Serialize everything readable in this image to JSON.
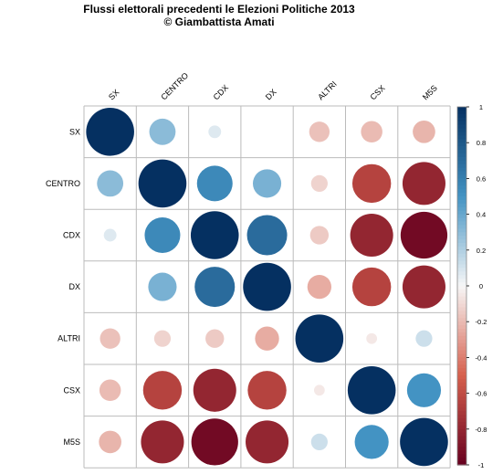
{
  "chart_data": {
    "type": "heatmap",
    "title": "Flussi elettorali precedenti le Elezioni Politiche 2013",
    "subtitle": "© Giambattista Amati",
    "labels": [
      "SX",
      "CENTRO",
      "CDX",
      "DX",
      "ALTRI",
      "CSX",
      "M5S"
    ],
    "matrix": [
      [
        1.0,
        0.3,
        0.07,
        0.0,
        -0.18,
        -0.2,
        -0.22
      ],
      [
        0.3,
        1.0,
        0.55,
        0.35,
        -0.12,
        -0.65,
        -0.8
      ],
      [
        0.07,
        0.55,
        1.0,
        0.7,
        -0.15,
        -0.8,
        -0.95
      ],
      [
        0.0,
        0.35,
        0.7,
        1.0,
        -0.25,
        -0.65,
        -0.8
      ],
      [
        -0.18,
        -0.12,
        -0.15,
        -0.25,
        1.0,
        -0.05,
        0.12
      ],
      [
        -0.2,
        -0.65,
        -0.8,
        -0.65,
        -0.05,
        1.0,
        0.5
      ],
      [
        -0.22,
        -0.8,
        -0.95,
        -0.8,
        0.12,
        0.5,
        1.0
      ]
    ],
    "colorbar_ticks": [
      "1",
      "0.8",
      "0.6",
      "0.4",
      "0.2",
      "0",
      "-0.2",
      "-0.4",
      "-0.6",
      "-0.8",
      "-1"
    ],
    "range": [
      -1,
      1
    ],
    "colors": {
      "neg_full": "#67001f",
      "neg_mid": "#d6604d",
      "neutral": "#f7f7f7",
      "pos_mid": "#4393c3",
      "pos_full": "#053061",
      "grid": "#bbbbbb"
    }
  }
}
